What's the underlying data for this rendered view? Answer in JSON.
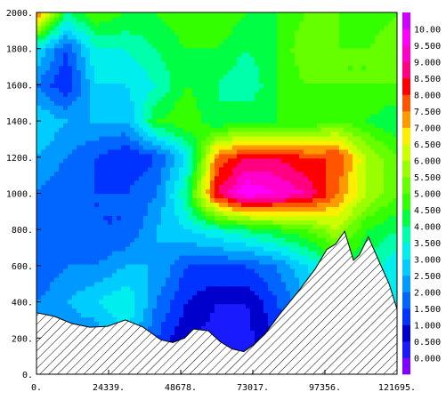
{
  "chart_data": {
    "type": "heatmap",
    "subtype": "filled-contour",
    "title": "",
    "xlabel": "",
    "ylabel": "",
    "xlim": [
      0,
      121695
    ],
    "ylim": [
      0,
      2000
    ],
    "x_ticks": [
      "0.",
      "24339.",
      "48678.",
      "73017.",
      "97356.",
      "121695."
    ],
    "x_tick_values": [
      0,
      24339,
      48678,
      73017,
      97356,
      121695
    ],
    "y_ticks": [
      "0.",
      "200.",
      "400.",
      "600.",
      "800.",
      "1000.",
      "1200.",
      "1400.",
      "1600.",
      "1800.",
      "2000."
    ],
    "y_tick_values": [
      0,
      200,
      400,
      600,
      800,
      1000,
      1200,
      1400,
      1600,
      1800,
      2000
    ],
    "colorbar": {
      "labels": [
        "0.000",
        "0.500",
        "1.000",
        "1.500",
        "2.000",
        "2.500",
        "3.000",
        "3.500",
        "4.000",
        "4.500",
        "5.000",
        "5.500",
        "6.000",
        "6.500",
        "7.000",
        "7.500",
        "8.000",
        "8.500",
        "9.000",
        "9.500",
        "10.00"
      ],
      "values": [
        0,
        0.5,
        1,
        1.5,
        2,
        2.5,
        3,
        3.5,
        4,
        4.5,
        5,
        5.5,
        6,
        6.5,
        7,
        7.5,
        8,
        8.5,
        9,
        9.5,
        10
      ],
      "colors": [
        "#8000ff",
        "#1a1aff",
        "#0000cc",
        "#0033ff",
        "#0066ff",
        "#0099ff",
        "#00ccff",
        "#00eeee",
        "#00ffaa",
        "#00ff44",
        "#33ff00",
        "#66ff00",
        "#99ff00",
        "#ccff00",
        "#ffee00",
        "#ff9900",
        "#ff5500",
        "#ff0000",
        "#ff0080",
        "#ff00cc",
        "#ff00ff",
        "#cc00ff"
      ]
    },
    "terrain": {
      "x": [
        0,
        6000,
        12000,
        18000,
        24000,
        30000,
        36000,
        42000,
        46000,
        50000,
        53000,
        58000,
        62000,
        66000,
        70000,
        73000,
        77000,
        82000,
        88000,
        94000,
        98000,
        101000,
        104000,
        107000,
        109000,
        112000,
        116000,
        119000,
        121695
      ],
      "y": [
        340,
        320,
        280,
        260,
        265,
        300,
        260,
        190,
        175,
        200,
        250,
        240,
        180,
        140,
        125,
        160,
        220,
        330,
        450,
        580,
        690,
        720,
        790,
        630,
        660,
        760,
        610,
        500,
        360
      ]
    },
    "grid": {
      "nx": 13,
      "ny": 11,
      "x": [
        0,
        10141,
        20282,
        30424,
        40565,
        50706,
        60848,
        70989,
        81130,
        91271,
        101413,
        111554,
        121695
      ],
      "y": [
        0,
        200,
        400,
        600,
        800,
        1000,
        1200,
        1400,
        1600,
        1800,
        2000
      ],
      "z": [
        [
          2.5,
          2.0,
          1.5,
          1.5,
          1.0,
          0.5,
          0.3,
          0.3,
          1.0,
          1.5,
          3.0,
          3.5,
          3.0
        ],
        [
          2.5,
          2.0,
          2.0,
          3.0,
          1.5,
          0.5,
          0.3,
          0.3,
          1.0,
          2.0,
          3.0,
          3.5,
          3.0
        ],
        [
          2.0,
          2.5,
          3.0,
          3.5,
          2.0,
          1.0,
          0.5,
          0.5,
          1.5,
          2.5,
          3.5,
          4.0,
          3.0
        ],
        [
          1.5,
          2.0,
          2.0,
          2.5,
          2.5,
          1.5,
          1.5,
          1.5,
          2.0,
          3.0,
          4.0,
          4.0,
          3.0
        ],
        [
          2.0,
          2.0,
          1.5,
          1.5,
          2.5,
          3.0,
          3.5,
          4.0,
          4.5,
          5.0,
          6.0,
          4.5,
          4.0
        ],
        [
          2.0,
          1.5,
          1.5,
          1.5,
          2.0,
          4.0,
          8.5,
          10.0,
          9.5,
          9.0,
          7.5,
          6.0,
          5.0
        ],
        [
          2.5,
          2.0,
          1.5,
          1.0,
          1.5,
          3.0,
          7.5,
          8.5,
          8.5,
          8.0,
          8.0,
          6.0,
          5.0
        ],
        [
          3.0,
          2.5,
          2.5,
          2.5,
          4.5,
          5.0,
          4.0,
          4.5,
          4.5,
          4.5,
          5.0,
          4.5,
          4.0
        ],
        [
          2.0,
          1.0,
          3.0,
          3.0,
          3.5,
          4.5,
          4.0,
          3.5,
          4.5,
          5.0,
          5.0,
          5.0,
          5.0
        ],
        [
          3.0,
          1.5,
          3.5,
          3.5,
          4.0,
          4.5,
          4.5,
          4.0,
          4.5,
          5.5,
          5.0,
          5.0,
          5.5
        ],
        [
          8.0,
          4.0,
          5.0,
          4.5,
          4.5,
          5.0,
          5.0,
          4.5,
          4.5,
          5.0,
          5.0,
          4.5,
          5.0
        ]
      ]
    }
  }
}
